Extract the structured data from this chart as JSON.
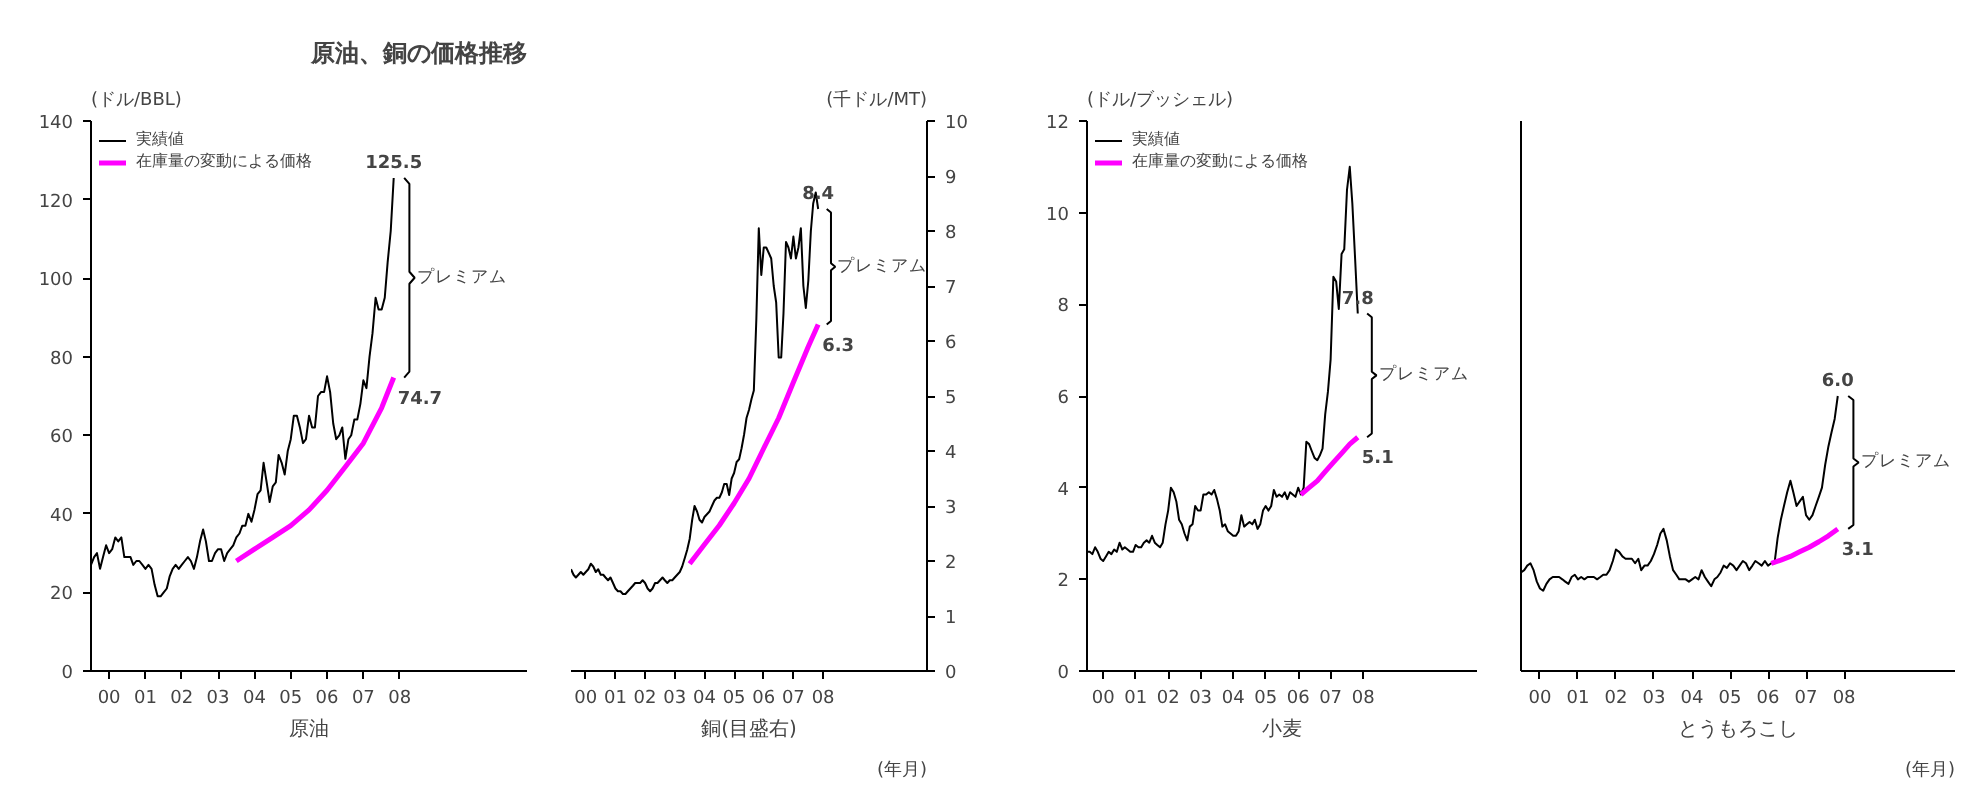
{
  "chart_data": [
    {
      "type": "line",
      "title": "原油、銅の価格推移",
      "ylabel": "(ドル/BBL)",
      "xlabel": "原油",
      "legend": "top left",
      "xlim": [
        "2000-01",
        "2012-01"
      ],
      "ylim": [
        0,
        140
      ],
      "yticks": [
        0,
        20,
        40,
        60,
        80,
        100,
        120,
        140
      ],
      "xticks": [
        {
          "value": "2000-07",
          "label": "00"
        },
        {
          "value": "2001-07",
          "label": "01"
        },
        {
          "value": "2002-07",
          "label": "02"
        },
        {
          "value": "2003-07",
          "label": "03"
        },
        {
          "value": "2004-07",
          "label": "04"
        },
        {
          "value": "2005-07",
          "label": "05"
        },
        {
          "value": "2006-07",
          "label": "06"
        },
        {
          "value": "2007-07",
          "label": "07"
        },
        {
          "value": "2008-07",
          "label": "08"
        }
      ],
      "x": [
        "2000-01",
        "2000-02",
        "2000-03",
        "2000-04",
        "2000-05",
        "2000-06",
        "2000-07",
        "2000-08",
        "2000-09",
        "2000-10",
        "2000-11",
        "2000-12",
        "2001-01",
        "2001-02",
        "2001-03",
        "2001-04",
        "2001-05",
        "2001-06",
        "2001-07",
        "2001-08",
        "2001-09",
        "2001-10",
        "2001-11",
        "2001-12",
        "2002-01",
        "2002-02",
        "2002-03",
        "2002-04",
        "2002-05",
        "2002-06",
        "2002-07",
        "2002-08",
        "2002-09",
        "2002-10",
        "2002-11",
        "2002-12",
        "2003-01",
        "2003-02",
        "2003-03",
        "2003-04",
        "2003-05",
        "2003-06",
        "2003-07",
        "2003-08",
        "2003-09",
        "2003-10",
        "2003-11",
        "2003-12",
        "2004-01",
        "2004-02",
        "2004-03",
        "2004-04",
        "2004-05",
        "2004-06",
        "2004-07",
        "2004-08",
        "2004-09",
        "2004-10",
        "2004-11",
        "2004-12",
        "2005-01",
        "2005-02",
        "2005-03",
        "2005-04",
        "2005-05",
        "2005-06",
        "2005-07",
        "2005-08",
        "2005-09",
        "2005-10",
        "2005-11",
        "2005-12",
        "2006-01",
        "2006-02",
        "2006-03",
        "2006-04",
        "2006-05",
        "2006-06",
        "2006-07",
        "2006-08",
        "2006-09",
        "2006-10",
        "2006-11",
        "2006-12",
        "2007-01",
        "2007-02",
        "2007-03",
        "2007-04",
        "2007-05",
        "2007-06",
        "2007-07",
        "2007-08",
        "2007-09",
        "2007-10",
        "2007-11",
        "2007-12",
        "2008-01",
        "2008-02",
        "2008-03",
        "2008-04",
        "2008-05"
      ],
      "series": [
        {
          "name": "実績値",
          "color": "#000000",
          "values": [
            27,
            29,
            30,
            26,
            29,
            32,
            30,
            31,
            34,
            33,
            34,
            29,
            29,
            29,
            27,
            28,
            28,
            27,
            26,
            27,
            26,
            22,
            19,
            19,
            20,
            21,
            24,
            26,
            27,
            26,
            27,
            28,
            29,
            28,
            26,
            29,
            33,
            36,
            33,
            28,
            28,
            30,
            31,
            31,
            28,
            30,
            31,
            32,
            34,
            35,
            37,
            37,
            40,
            38,
            41,
            45,
            46,
            53,
            48,
            43,
            47,
            48,
            55,
            53,
            50,
            56,
            59,
            65,
            65,
            62,
            58,
            59,
            65,
            62,
            62,
            70,
            71,
            71,
            75,
            71,
            63,
            59,
            60,
            62,
            54,
            59,
            60,
            64,
            64,
            68,
            74,
            72,
            80,
            86,
            95,
            92,
            92,
            95,
            104,
            112,
            125.5
          ],
          "value_labels": [
            null,
            null,
            null,
            null,
            null,
            null,
            null,
            null,
            null,
            null,
            null,
            null,
            null,
            null,
            null,
            null,
            null,
            null,
            null,
            null,
            null,
            null,
            null,
            null,
            null,
            null,
            null,
            null,
            null,
            null,
            null,
            null,
            null,
            null,
            null,
            null,
            null,
            null,
            null,
            null,
            null,
            null,
            null,
            null,
            null,
            null,
            null,
            null,
            null,
            null,
            null,
            null,
            null,
            null,
            null,
            null,
            null,
            null,
            null,
            null,
            null,
            null,
            null,
            null,
            null,
            null,
            null,
            null,
            null,
            null,
            null,
            null,
            null,
            null,
            null,
            null,
            null,
            null,
            null,
            null,
            null,
            null,
            null,
            null,
            null,
            null,
            null,
            null,
            null,
            null,
            null,
            null,
            null,
            null,
            null,
            null,
            null,
            null,
            null,
            null,
            "125.5"
          ]
        },
        {
          "name": "在庫量の変動による価格",
          "color": "#ff00ff",
          "x": [
            "2004-01",
            "2004-07",
            "2005-01",
            "2005-07",
            "2006-01",
            "2006-07",
            "2007-01",
            "2007-07",
            "2008-01",
            "2008-05"
          ],
          "values": [
            28,
            31,
            34,
            37,
            41,
            46,
            52,
            58,
            67,
            74.7
          ],
          "value_labels": [
            null,
            null,
            null,
            null,
            null,
            null,
            null,
            null,
            null,
            "74.7"
          ]
        }
      ],
      "annotations": [
        "プレミアム"
      ]
    },
    {
      "type": "line",
      "y2label": "(千ドル/MT)",
      "xlabel": "銅(目盛右)",
      "xlim": [
        "2000-01",
        "2012-01"
      ],
      "y2lim": [
        0,
        10
      ],
      "y2ticks": [
        0,
        1,
        2,
        3,
        4,
        5,
        6,
        7,
        8,
        9,
        10
      ],
      "xticks": [
        {
          "value": "2000-07",
          "label": "00"
        },
        {
          "value": "2001-07",
          "label": "01"
        },
        {
          "value": "2002-07",
          "label": "02"
        },
        {
          "value": "2003-07",
          "label": "03"
        },
        {
          "value": "2004-07",
          "label": "04"
        },
        {
          "value": "2005-07",
          "label": "05"
        },
        {
          "value": "2006-07",
          "label": "06"
        },
        {
          "value": "2007-07",
          "label": "07"
        },
        {
          "value": "2008-07",
          "label": "08"
        }
      ],
      "x": [
        "2000-01",
        "2000-02",
        "2000-03",
        "2000-04",
        "2000-05",
        "2000-06",
        "2000-07",
        "2000-08",
        "2000-09",
        "2000-10",
        "2000-11",
        "2000-12",
        "2001-01",
        "2001-02",
        "2001-03",
        "2001-04",
        "2001-05",
        "2001-06",
        "2001-07",
        "2001-08",
        "2001-09",
        "2001-10",
        "2001-11",
        "2001-12",
        "2002-01",
        "2002-02",
        "2002-03",
        "2002-04",
        "2002-05",
        "2002-06",
        "2002-07",
        "2002-08",
        "2002-09",
        "2002-10",
        "2002-11",
        "2002-12",
        "2003-01",
        "2003-02",
        "2003-03",
        "2003-04",
        "2003-05",
        "2003-06",
        "2003-07",
        "2003-08",
        "2003-09",
        "2003-10",
        "2003-11",
        "2003-12",
        "2004-01",
        "2004-02",
        "2004-03",
        "2004-04",
        "2004-05",
        "2004-06",
        "2004-07",
        "2004-08",
        "2004-09",
        "2004-10",
        "2004-11",
        "2004-12",
        "2005-01",
        "2005-02",
        "2005-03",
        "2005-04",
        "2005-05",
        "2005-06",
        "2005-07",
        "2005-08",
        "2005-09",
        "2005-10",
        "2005-11",
        "2005-12",
        "2006-01",
        "2006-02",
        "2006-03",
        "2006-04",
        "2006-05",
        "2006-06",
        "2006-07",
        "2006-08",
        "2006-09",
        "2006-10",
        "2006-11",
        "2006-12",
        "2007-01",
        "2007-02",
        "2007-03",
        "2007-04",
        "2007-05",
        "2007-06",
        "2007-07",
        "2007-08",
        "2007-09",
        "2007-10",
        "2007-11",
        "2007-12",
        "2008-01",
        "2008-02",
        "2008-03",
        "2008-04",
        "2008-05"
      ],
      "series": [
        {
          "color": "#000000",
          "axis": "y2",
          "values": [
            1.85,
            1.75,
            1.7,
            1.75,
            1.8,
            1.75,
            1.8,
            1.85,
            1.95,
            1.9,
            1.8,
            1.85,
            1.75,
            1.75,
            1.7,
            1.65,
            1.7,
            1.6,
            1.5,
            1.45,
            1.45,
            1.4,
            1.4,
            1.45,
            1.5,
            1.55,
            1.6,
            1.6,
            1.6,
            1.65,
            1.6,
            1.5,
            1.45,
            1.5,
            1.6,
            1.6,
            1.65,
            1.7,
            1.65,
            1.6,
            1.65,
            1.65,
            1.7,
            1.75,
            1.8,
            1.9,
            2.05,
            2.2,
            2.4,
            2.75,
            3.0,
            2.9,
            2.75,
            2.7,
            2.8,
            2.85,
            2.9,
            3.0,
            3.1,
            3.15,
            3.15,
            3.25,
            3.4,
            3.4,
            3.2,
            3.5,
            3.6,
            3.8,
            3.85,
            4.05,
            4.3,
            4.6,
            4.75,
            4.95,
            5.1,
            6.4,
            8.05,
            7.2,
            7.7,
            7.7,
            7.6,
            7.5,
            7.0,
            6.7,
            5.7,
            5.7,
            6.5,
            7.8,
            7.7,
            7.5,
            7.9,
            7.5,
            7.7,
            8.05,
            7.0,
            6.6,
            7.1,
            8.0,
            8.5,
            8.7,
            8.4
          ],
          "value_labels": [
            null,
            null,
            null,
            null,
            null,
            null,
            null,
            null,
            null,
            null,
            null,
            null,
            null,
            null,
            null,
            null,
            null,
            null,
            null,
            null,
            null,
            null,
            null,
            null,
            null,
            null,
            null,
            null,
            null,
            null,
            null,
            null,
            null,
            null,
            null,
            null,
            null,
            null,
            null,
            null,
            null,
            null,
            null,
            null,
            null,
            null,
            null,
            null,
            null,
            null,
            null,
            null,
            null,
            null,
            null,
            null,
            null,
            null,
            null,
            null,
            null,
            null,
            null,
            null,
            null,
            null,
            null,
            null,
            null,
            null,
            null,
            null,
            null,
            null,
            null,
            null,
            null,
            null,
            null,
            null,
            null,
            null,
            null,
            null,
            null,
            null,
            null,
            null,
            null,
            null,
            null,
            null,
            null,
            null,
            null,
            null,
            null,
            null,
            null,
            null,
            "8.4"
          ]
        },
        {
          "color": "#ff00ff",
          "axis": "y2",
          "x": [
            "2004-01",
            "2004-07",
            "2005-01",
            "2005-07",
            "2006-01",
            "2006-07",
            "2007-01",
            "2007-07",
            "2008-01",
            "2008-05"
          ],
          "values": [
            1.95,
            2.3,
            2.65,
            3.05,
            3.5,
            4.05,
            4.6,
            5.25,
            5.9,
            6.3
          ],
          "value_labels": [
            null,
            null,
            null,
            null,
            null,
            null,
            null,
            null,
            null,
            "6.3"
          ]
        }
      ],
      "annotations": [
        "プレミアム",
        "(年月)"
      ]
    },
    {
      "type": "line",
      "ylabel": "(ドル/ブッシェル)",
      "xlabel": "小麦",
      "legend": "top left",
      "xlim": [
        "2000-01",
        "2012-01"
      ],
      "ylim": [
        0,
        12
      ],
      "yticks": [
        0,
        2,
        4,
        6,
        8,
        10,
        12
      ],
      "xticks": [
        {
          "value": "2000-07",
          "label": "00"
        },
        {
          "value": "2001-07",
          "label": "01"
        },
        {
          "value": "2002-07",
          "label": "02"
        },
        {
          "value": "2003-07",
          "label": "03"
        },
        {
          "value": "2004-07",
          "label": "04"
        },
        {
          "value": "2005-07",
          "label": "05"
        },
        {
          "value": "2006-07",
          "label": "06"
        },
        {
          "value": "2007-07",
          "label": "07"
        },
        {
          "value": "2008-07",
          "label": "08"
        }
      ],
      "x": [
        "2000-01",
        "2000-02",
        "2000-03",
        "2000-04",
        "2000-05",
        "2000-06",
        "2000-07",
        "2000-08",
        "2000-09",
        "2000-10",
        "2000-11",
        "2000-12",
        "2001-01",
        "2001-02",
        "2001-03",
        "2001-04",
        "2001-05",
        "2001-06",
        "2001-07",
        "2001-08",
        "2001-09",
        "2001-10",
        "2001-11",
        "2001-12",
        "2002-01",
        "2002-02",
        "2002-03",
        "2002-04",
        "2002-05",
        "2002-06",
        "2002-07",
        "2002-08",
        "2002-09",
        "2002-10",
        "2002-11",
        "2002-12",
        "2003-01",
        "2003-02",
        "2003-03",
        "2003-04",
        "2003-05",
        "2003-06",
        "2003-07",
        "2003-08",
        "2003-09",
        "2003-10",
        "2003-11",
        "2003-12",
        "2004-01",
        "2004-02",
        "2004-03",
        "2004-04",
        "2004-05",
        "2004-06",
        "2004-07",
        "2004-08",
        "2004-09",
        "2004-10",
        "2004-11",
        "2004-12",
        "2005-01",
        "2005-02",
        "2005-03",
        "2005-04",
        "2005-05",
        "2005-06",
        "2005-07",
        "2005-08",
        "2005-09",
        "2005-10",
        "2005-11",
        "2005-12",
        "2006-01",
        "2006-02",
        "2006-03",
        "2006-04",
        "2006-05",
        "2006-06",
        "2006-07",
        "2006-08",
        "2006-09",
        "2006-10",
        "2006-11",
        "2006-12",
        "2007-01",
        "2007-02",
        "2007-03",
        "2007-04",
        "2007-05",
        "2007-06",
        "2007-07",
        "2007-08",
        "2007-09",
        "2007-10",
        "2007-11",
        "2007-12",
        "2008-01",
        "2008-02",
        "2008-03",
        "2008-04",
        "2008-05"
      ],
      "series": [
        {
          "name": "実績値",
          "color": "#000000",
          "values": [
            2.6,
            2.6,
            2.55,
            2.7,
            2.6,
            2.45,
            2.4,
            2.5,
            2.6,
            2.55,
            2.65,
            2.6,
            2.8,
            2.65,
            2.7,
            2.65,
            2.6,
            2.6,
            2.75,
            2.7,
            2.7,
            2.8,
            2.85,
            2.8,
            2.95,
            2.8,
            2.75,
            2.7,
            2.8,
            3.2,
            3.5,
            4.0,
            3.9,
            3.7,
            3.3,
            3.2,
            3.0,
            2.85,
            3.15,
            3.2,
            3.6,
            3.5,
            3.5,
            3.85,
            3.85,
            3.9,
            3.85,
            3.95,
            3.75,
            3.5,
            3.15,
            3.2,
            3.05,
            3.0,
            2.95,
            2.95,
            3.05,
            3.4,
            3.15,
            3.2,
            3.25,
            3.2,
            3.3,
            3.1,
            3.2,
            3.5,
            3.6,
            3.5,
            3.6,
            3.95,
            3.8,
            3.85,
            3.8,
            3.9,
            3.75,
            3.9,
            3.85,
            3.8,
            4.0,
            3.85,
            4.0,
            5.0,
            4.95,
            4.8,
            4.65,
            4.6,
            4.7,
            4.85,
            5.6,
            6.1,
            6.8,
            8.6,
            8.5,
            7.9,
            9.1,
            9.2,
            10.5,
            11.0,
            10.2,
            9.0,
            7.8
          ],
          "value_labels": [
            null,
            null,
            null,
            null,
            null,
            null,
            null,
            null,
            null,
            null,
            null,
            null,
            null,
            null,
            null,
            null,
            null,
            null,
            null,
            null,
            null,
            null,
            null,
            null,
            null,
            null,
            null,
            null,
            null,
            null,
            null,
            null,
            null,
            null,
            null,
            null,
            null,
            null,
            null,
            null,
            null,
            null,
            null,
            null,
            null,
            null,
            null,
            null,
            null,
            null,
            null,
            null,
            null,
            null,
            null,
            null,
            null,
            null,
            null,
            null,
            null,
            null,
            null,
            null,
            null,
            null,
            null,
            null,
            null,
            null,
            null,
            null,
            null,
            null,
            null,
            null,
            null,
            null,
            null,
            null,
            null,
            null,
            null,
            null,
            null,
            null,
            null,
            null,
            null,
            null,
            null,
            null,
            null,
            null,
            null,
            null,
            null,
            null,
            null,
            null,
            "7.8"
          ]
        },
        {
          "name": "在庫量の変動による価格",
          "color": "#ff00ff",
          "x": [
            "2006-08",
            "2006-11",
            "2007-02",
            "2007-05",
            "2007-08",
            "2007-11",
            "2008-02",
            "2008-05"
          ],
          "values": [
            3.85,
            4.0,
            4.15,
            4.35,
            4.55,
            4.75,
            4.95,
            5.1
          ],
          "value_labels": [
            null,
            null,
            null,
            null,
            null,
            null,
            null,
            "5.1"
          ]
        }
      ],
      "annotations": [
        "プレミアム"
      ]
    },
    {
      "type": "line",
      "xlabel": "とうもろこし",
      "tick_labels": "x",
      "xlim": [
        "2000-01",
        "2011-06"
      ],
      "ylim": [
        0,
        12
      ],
      "xticks": [
        {
          "value": "2000-07",
          "label": "00"
        },
        {
          "value": "2001-07",
          "label": "01"
        },
        {
          "value": "2002-07",
          "label": "02"
        },
        {
          "value": "2003-07",
          "label": "03"
        },
        {
          "value": "2004-07",
          "label": "04"
        },
        {
          "value": "2005-07",
          "label": "05"
        },
        {
          "value": "2006-07",
          "label": "06"
        },
        {
          "value": "2007-07",
          "label": "07"
        },
        {
          "value": "2008-07",
          "label": "08"
        }
      ],
      "x": [
        "2000-01",
        "2000-02",
        "2000-03",
        "2000-04",
        "2000-05",
        "2000-06",
        "2000-07",
        "2000-08",
        "2000-09",
        "2000-10",
        "2000-11",
        "2000-12",
        "2001-01",
        "2001-02",
        "2001-03",
        "2001-04",
        "2001-05",
        "2001-06",
        "2001-07",
        "2001-08",
        "2001-09",
        "2001-10",
        "2001-11",
        "2001-12",
        "2002-01",
        "2002-02",
        "2002-03",
        "2002-04",
        "2002-05",
        "2002-06",
        "2002-07",
        "2002-08",
        "2002-09",
        "2002-10",
        "2002-11",
        "2002-12",
        "2003-01",
        "2003-02",
        "2003-03",
        "2003-04",
        "2003-05",
        "2003-06",
        "2003-07",
        "2003-08",
        "2003-09",
        "2003-10",
        "2003-11",
        "2003-12",
        "2004-01",
        "2004-02",
        "2004-03",
        "2004-04",
        "2004-05",
        "2004-06",
        "2004-07",
        "2004-08",
        "2004-09",
        "2004-10",
        "2004-11",
        "2004-12",
        "2005-01",
        "2005-02",
        "2005-03",
        "2005-04",
        "2005-05",
        "2005-06",
        "2005-07",
        "2005-08",
        "2005-09",
        "2005-10",
        "2005-11",
        "2005-12",
        "2006-01",
        "2006-02",
        "2006-03",
        "2006-04",
        "2006-05",
        "2006-06",
        "2006-07",
        "2006-08",
        "2006-09",
        "2006-10",
        "2006-11",
        "2006-12",
        "2007-01",
        "2007-02",
        "2007-03",
        "2007-04",
        "2007-05",
        "2007-06",
        "2007-07",
        "2007-08",
        "2007-09",
        "2007-10",
        "2007-11",
        "2007-12",
        "2008-01",
        "2008-02",
        "2008-03",
        "2008-04",
        "2008-05"
      ],
      "series": [
        {
          "color": "#000000",
          "values": [
            2.15,
            2.2,
            2.3,
            2.35,
            2.2,
            1.95,
            1.8,
            1.75,
            1.9,
            2.0,
            2.05,
            2.05,
            2.05,
            2.0,
            1.95,
            1.9,
            2.05,
            2.1,
            2.0,
            2.05,
            2.0,
            2.05,
            2.05,
            2.05,
            2.0,
            2.05,
            2.1,
            2.1,
            2.2,
            2.4,
            2.65,
            2.6,
            2.5,
            2.45,
            2.45,
            2.45,
            2.35,
            2.45,
            2.2,
            2.3,
            2.3,
            2.4,
            2.55,
            2.75,
            3.0,
            3.1,
            2.85,
            2.5,
            2.2,
            2.1,
            2.0,
            2.0,
            2.0,
            1.95,
            2.0,
            2.05,
            2.0,
            2.2,
            2.05,
            1.95,
            1.85,
            2.0,
            2.05,
            2.15,
            2.3,
            2.25,
            2.35,
            2.3,
            2.2,
            2.3,
            2.4,
            2.35,
            2.2,
            2.3,
            2.4,
            2.35,
            2.3,
            2.4,
            2.3,
            2.35,
            2.35,
            2.9,
            3.3,
            3.6,
            3.9,
            4.15,
            3.9,
            3.6,
            3.7,
            3.8,
            3.4,
            3.3,
            3.4,
            3.6,
            3.8,
            4.0,
            4.5,
            4.9,
            5.2,
            5.5,
            6.0
          ],
          "value_labels": [
            null,
            null,
            null,
            null,
            null,
            null,
            null,
            null,
            null,
            null,
            null,
            null,
            null,
            null,
            null,
            null,
            null,
            null,
            null,
            null,
            null,
            null,
            null,
            null,
            null,
            null,
            null,
            null,
            null,
            null,
            null,
            null,
            null,
            null,
            null,
            null,
            null,
            null,
            null,
            null,
            null,
            null,
            null,
            null,
            null,
            null,
            null,
            null,
            null,
            null,
            null,
            null,
            null,
            null,
            null,
            null,
            null,
            null,
            null,
            null,
            null,
            null,
            null,
            null,
            null,
            null,
            null,
            null,
            null,
            null,
            null,
            null,
            null,
            null,
            null,
            null,
            null,
            null,
            null,
            null,
            null,
            null,
            null,
            null,
            null,
            null,
            null,
            null,
            null,
            null,
            null,
            null,
            null,
            null,
            null,
            null,
            null,
            null,
            null,
            null,
            "6.0"
          ]
        },
        {
          "color": "#ff00ff",
          "x": [
            "2006-08",
            "2006-11",
            "2007-02",
            "2007-05",
            "2007-08",
            "2007-11",
            "2008-02",
            "2008-05"
          ],
          "values": [
            2.35,
            2.42,
            2.5,
            2.6,
            2.7,
            2.82,
            2.95,
            3.1
          ],
          "value_labels": [
            null,
            null,
            null,
            null,
            null,
            null,
            null,
            "3.1"
          ]
        }
      ],
      "annotations": [
        "プレミアム",
        "(年月)"
      ]
    }
  ]
}
